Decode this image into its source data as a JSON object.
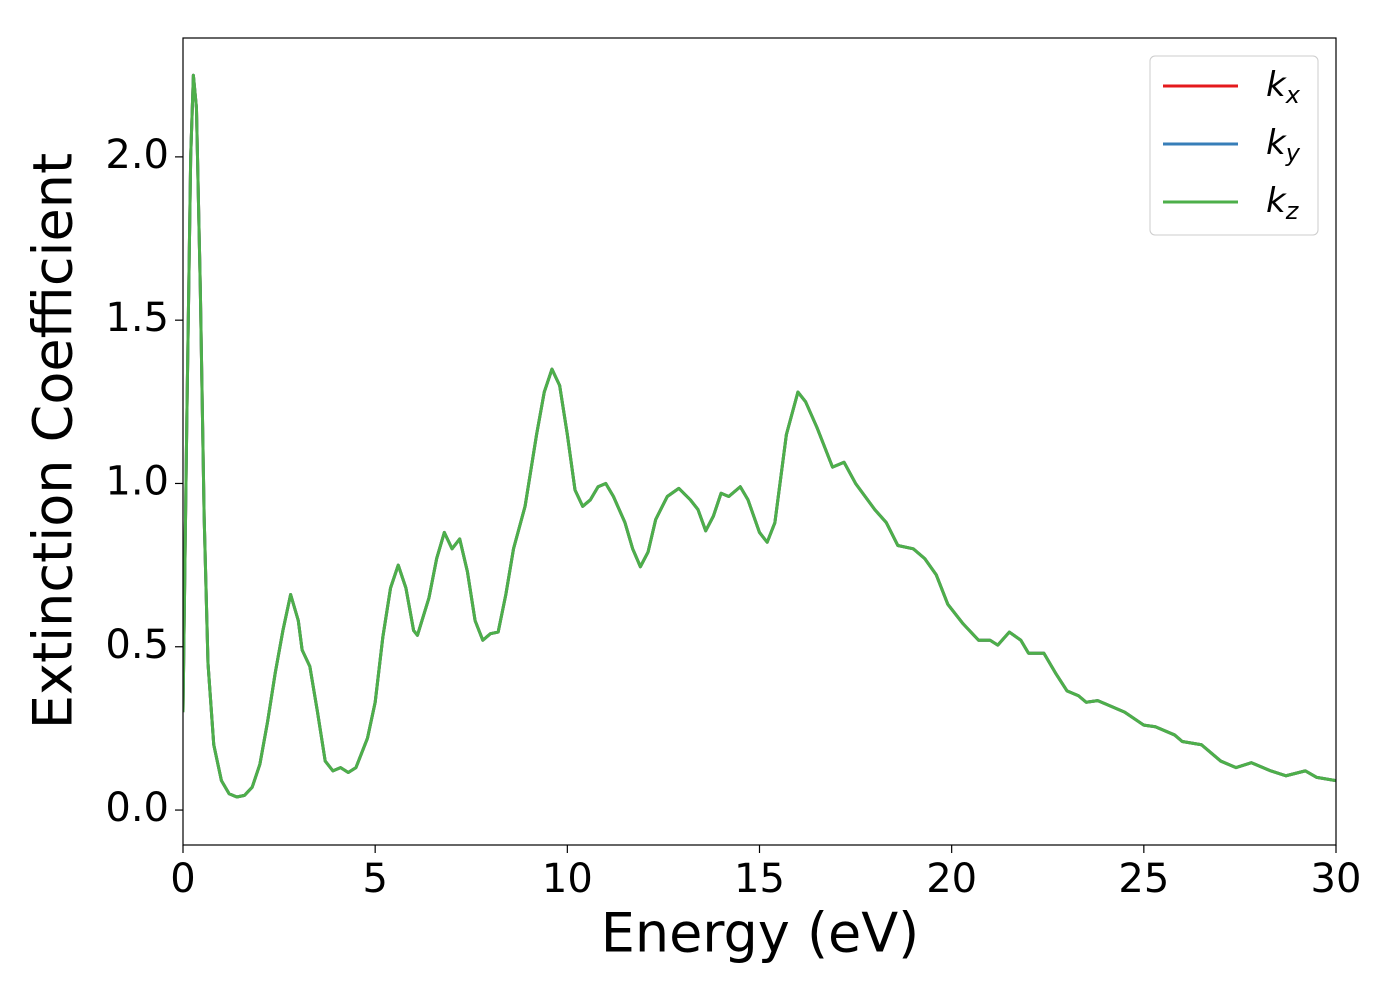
{
  "chart_data": {
    "type": "line",
    "xlabel": "Energy (eV)",
    "ylabel": "Extinction Coefficient",
    "xlim": [
      0,
      30
    ],
    "xticks": [
      0,
      5,
      10,
      15,
      20,
      25,
      30
    ],
    "ylim": [
      -0.107,
      2.364
    ],
    "yticks": [
      {
        "value": 0,
        "label": "0.0"
      },
      {
        "value": 0.5,
        "label": "0.5"
      },
      {
        "value": 1,
        "label": "1.0"
      },
      {
        "value": 1.5,
        "label": "1.5"
      },
      {
        "value": 2,
        "label": "2.0"
      }
    ],
    "grid": false,
    "legend": "upper right",
    "x": [
      0,
      0.1,
      0.2,
      0.27,
      0.35,
      0.45,
      0.55,
      0.65,
      0.8,
      1.0,
      1.2,
      1.4,
      1.6,
      1.8,
      2.0,
      2.2,
      2.4,
      2.6,
      2.8,
      3.0,
      3.1,
      3.3,
      3.5,
      3.7,
      3.9,
      4.1,
      4.3,
      4.5,
      4.8,
      5.0,
      5.2,
      5.4,
      5.6,
      5.8,
      6.0,
      6.1,
      6.4,
      6.6,
      6.8,
      7.0,
      7.2,
      7.4,
      7.6,
      7.8,
      8.0,
      8.2,
      8.4,
      8.6,
      8.9,
      9.2,
      9.4,
      9.6,
      9.8,
      10.0,
      10.2,
      10.4,
      10.6,
      10.8,
      11.0,
      11.2,
      11.5,
      11.7,
      11.9,
      12.1,
      12.3,
      12.6,
      12.9,
      13.2,
      13.4,
      13.6,
      13.8,
      14.0,
      14.2,
      14.5,
      14.7,
      15.0,
      15.2,
      15.4,
      15.7,
      16.0,
      16.2,
      16.5,
      16.9,
      17.2,
      17.5,
      18.0,
      18.3,
      18.6,
      19.0,
      19.3,
      19.6,
      19.9,
      20.3,
      20.7,
      21.0,
      21.2,
      21.5,
      21.8,
      22.0,
      22.4,
      22.7,
      23.0,
      23.3,
      23.5,
      23.8,
      24.0,
      24.5,
      25.0,
      25.3,
      25.8,
      26.0,
      26.5,
      27.0,
      27.4,
      27.8,
      28.3,
      28.7,
      29.2,
      29.5,
      30.0
    ],
    "series": [
      {
        "name": "kx",
        "color": "#e41a1c",
        "values": [
          0.3,
          1.2,
          2.0,
          2.25,
          2.15,
          1.6,
          0.9,
          0.45,
          0.2,
          0.09,
          0.05,
          0.04,
          0.045,
          0.07,
          0.14,
          0.27,
          0.42,
          0.55,
          0.66,
          0.58,
          0.49,
          0.44,
          0.3,
          0.15,
          0.12,
          0.13,
          0.115,
          0.13,
          0.22,
          0.33,
          0.53,
          0.68,
          0.75,
          0.68,
          0.55,
          0.535,
          0.65,
          0.77,
          0.85,
          0.8,
          0.83,
          0.73,
          0.58,
          0.52,
          0.54,
          0.545,
          0.66,
          0.8,
          0.93,
          1.15,
          1.28,
          1.35,
          1.3,
          1.15,
          0.98,
          0.93,
          0.95,
          0.99,
          1.0,
          0.96,
          0.88,
          0.8,
          0.745,
          0.79,
          0.89,
          0.96,
          0.985,
          0.95,
          0.92,
          0.855,
          0.9,
          0.97,
          0.96,
          0.99,
          0.95,
          0.85,
          0.82,
          0.88,
          1.15,
          1.28,
          1.25,
          1.17,
          1.05,
          1.065,
          1.0,
          0.92,
          0.88,
          0.81,
          0.8,
          0.77,
          0.72,
          0.63,
          0.57,
          0.52,
          0.52,
          0.505,
          0.545,
          0.52,
          0.48,
          0.48,
          0.42,
          0.365,
          0.35,
          0.33,
          0.335,
          0.325,
          0.3,
          0.26,
          0.255,
          0.23,
          0.21,
          0.2,
          0.15,
          0.13,
          0.145,
          0.12,
          0.105,
          0.12,
          0.1,
          0.09
        ]
      },
      {
        "name": "ky",
        "color": "#377eb8",
        "values": [
          0.3,
          1.2,
          2.0,
          2.25,
          2.15,
          1.6,
          0.9,
          0.45,
          0.2,
          0.09,
          0.05,
          0.04,
          0.045,
          0.07,
          0.14,
          0.27,
          0.42,
          0.55,
          0.66,
          0.58,
          0.49,
          0.44,
          0.3,
          0.15,
          0.12,
          0.13,
          0.115,
          0.13,
          0.22,
          0.33,
          0.53,
          0.68,
          0.75,
          0.68,
          0.55,
          0.535,
          0.65,
          0.77,
          0.85,
          0.8,
          0.83,
          0.73,
          0.58,
          0.52,
          0.54,
          0.545,
          0.66,
          0.8,
          0.93,
          1.15,
          1.28,
          1.35,
          1.3,
          1.15,
          0.98,
          0.93,
          0.95,
          0.99,
          1.0,
          0.96,
          0.88,
          0.8,
          0.745,
          0.79,
          0.89,
          0.96,
          0.985,
          0.95,
          0.92,
          0.855,
          0.9,
          0.97,
          0.96,
          0.99,
          0.95,
          0.85,
          0.82,
          0.88,
          1.15,
          1.28,
          1.25,
          1.17,
          1.05,
          1.065,
          1.0,
          0.92,
          0.88,
          0.81,
          0.8,
          0.77,
          0.72,
          0.63,
          0.57,
          0.52,
          0.52,
          0.505,
          0.545,
          0.52,
          0.48,
          0.48,
          0.42,
          0.365,
          0.35,
          0.33,
          0.335,
          0.325,
          0.3,
          0.26,
          0.255,
          0.23,
          0.21,
          0.2,
          0.15,
          0.13,
          0.145,
          0.12,
          0.105,
          0.12,
          0.1,
          0.09
        ]
      },
      {
        "name": "kz",
        "color": "#4daf4a",
        "values": [
          0.3,
          1.2,
          2.0,
          2.25,
          2.15,
          1.6,
          0.9,
          0.45,
          0.2,
          0.09,
          0.05,
          0.04,
          0.045,
          0.07,
          0.14,
          0.27,
          0.42,
          0.55,
          0.66,
          0.58,
          0.49,
          0.44,
          0.3,
          0.15,
          0.12,
          0.13,
          0.115,
          0.13,
          0.22,
          0.33,
          0.53,
          0.68,
          0.75,
          0.68,
          0.55,
          0.535,
          0.65,
          0.77,
          0.85,
          0.8,
          0.83,
          0.73,
          0.58,
          0.52,
          0.54,
          0.545,
          0.66,
          0.8,
          0.93,
          1.15,
          1.28,
          1.35,
          1.3,
          1.15,
          0.98,
          0.93,
          0.95,
          0.99,
          1.0,
          0.96,
          0.88,
          0.8,
          0.745,
          0.79,
          0.89,
          0.96,
          0.985,
          0.95,
          0.92,
          0.855,
          0.9,
          0.97,
          0.96,
          0.99,
          0.95,
          0.85,
          0.82,
          0.88,
          1.15,
          1.28,
          1.25,
          1.17,
          1.05,
          1.065,
          1.0,
          0.92,
          0.88,
          0.81,
          0.8,
          0.77,
          0.72,
          0.63,
          0.57,
          0.52,
          0.52,
          0.505,
          0.545,
          0.52,
          0.48,
          0.48,
          0.42,
          0.365,
          0.35,
          0.33,
          0.335,
          0.325,
          0.3,
          0.26,
          0.255,
          0.23,
          0.21,
          0.2,
          0.15,
          0.13,
          0.145,
          0.12,
          0.105,
          0.12,
          0.1,
          0.09
        ]
      }
    ]
  }
}
